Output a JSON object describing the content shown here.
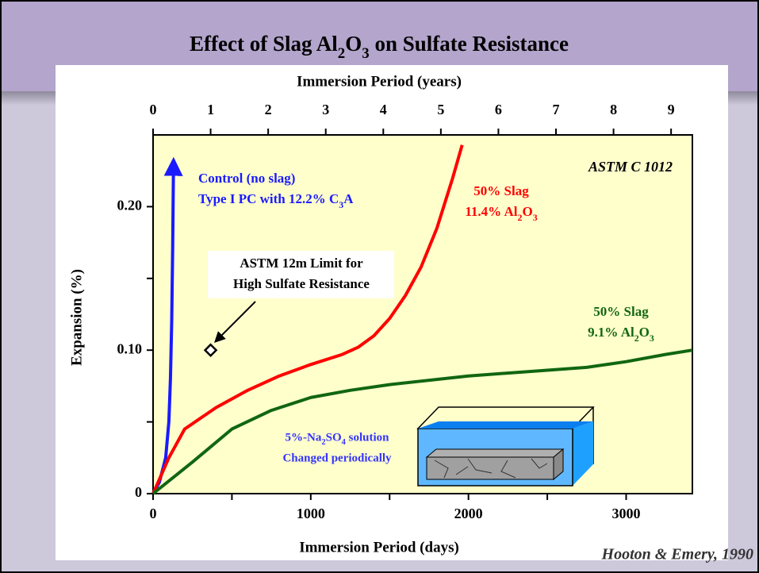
{
  "chart_data": {
    "type": "line",
    "title": "Effect of Slag Al2O3 on Sulfate Resistance",
    "x_label": "Immersion Period (days)",
    "x2_label": "Immersion Period (years)",
    "y_label": "Expansion (%)",
    "xlim": [
      0,
      3420
    ],
    "xticks": [
      0,
      1000,
      2000,
      3000
    ],
    "xticks_minor": [
      500,
      1500,
      2500
    ],
    "x2lim": [
      0,
      9.37
    ],
    "x2ticks": [
      0,
      1,
      2,
      3,
      4,
      5,
      6,
      7,
      8,
      9
    ],
    "ylim": [
      0,
      0.25
    ],
    "yticks": [
      0,
      {
        "value": 0.1,
        "label": "0.10"
      },
      {
        "value": 0.2,
        "label": "0.20"
      }
    ],
    "yticks_minor": [
      0.05,
      0.15
    ],
    "series": [
      {
        "name": "Control (no slag)",
        "detail": "Type I PC with 12.2% C3A",
        "color": "#1a1aff",
        "x": [
          0,
          40,
          80,
          100,
          110,
          118,
          124,
          130
        ],
        "y": [
          0,
          0.008,
          0.025,
          0.05,
          0.08,
          0.12,
          0.17,
          0.232
        ]
      },
      {
        "name": "50% Slag",
        "detail": "11.4% Al2O3",
        "color": "#ff0000",
        "x": [
          0,
          100,
          200,
          400,
          600,
          800,
          1000,
          1200,
          1300,
          1400,
          1500,
          1600,
          1700,
          1800,
          1900,
          1960
        ],
        "y": [
          0,
          0.025,
          0.045,
          0.06,
          0.072,
          0.082,
          0.09,
          0.097,
          0.102,
          0.11,
          0.122,
          0.138,
          0.158,
          0.185,
          0.22,
          0.243
        ]
      },
      {
        "name": "50% Slag",
        "detail": "9.1% Al2O3",
        "color": "#116611",
        "x": [
          0,
          250,
          500,
          750,
          1000,
          1250,
          1500,
          2000,
          2500,
          2750,
          3000,
          3250,
          3420
        ],
        "y": [
          0,
          0.022,
          0.045,
          0.058,
          0.067,
          0.072,
          0.076,
          0.082,
          0.086,
          0.088,
          0.092,
          0.097,
          0.1
        ]
      }
    ],
    "limit_point": {
      "x": 365,
      "y": 0.1,
      "label_lines": [
        "ASTM 12m Limit for",
        "High Sulfate Resistance"
      ]
    },
    "annotations": {
      "standard": "ASTM C 1012",
      "solution_lines": [
        "5%-Na2SO4 solution",
        "Changed periodically"
      ]
    },
    "source": "Hooton & Emery, 1990"
  }
}
